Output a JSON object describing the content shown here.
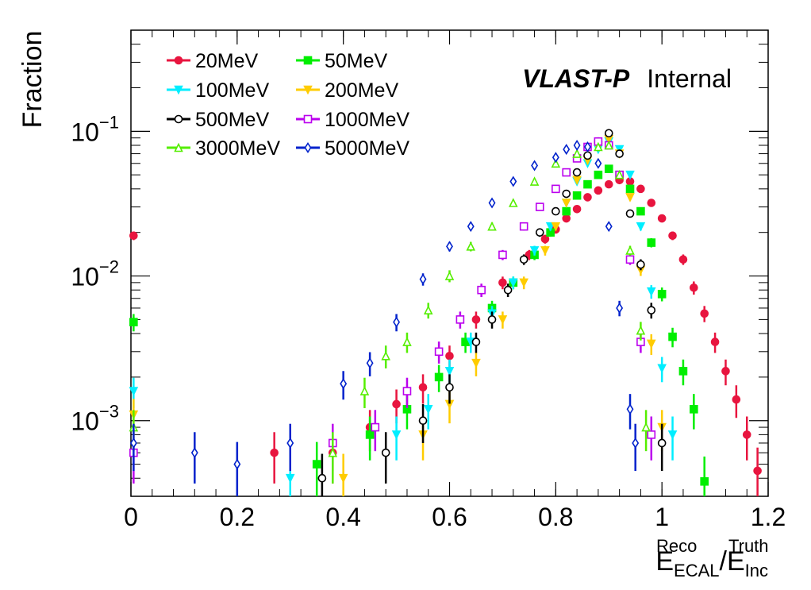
{
  "chart_data": {
    "type": "scatter",
    "ylabel": "Fraction",
    "xlabel_main": "E",
    "xlabel_num_sup": "Reco",
    "xlabel_num_sub": "ECAL",
    "xlabel_sep": "/E",
    "xlabel_den_sup": "Truth",
    "xlabel_den_sub": "Inc",
    "annotation_bold": "VLAST-P",
    "annotation": "Internal",
    "y_scale": "log",
    "xlim": [
      0,
      1.2
    ],
    "ylim": [
      0.0003,
      0.5
    ],
    "x_ticks": [
      "0",
      "0.2",
      "0.4",
      "0.6",
      "0.8",
      "1",
      "1.2"
    ],
    "x_tick_values": [
      0,
      0.2,
      0.4,
      0.6,
      0.8,
      1.0,
      1.2
    ],
    "y_ticks": [
      {
        "base": "10",
        "exp": "−1",
        "value": 0.1
      },
      {
        "base": "10",
        "exp": "−2",
        "value": 0.01
      },
      {
        "base": "10",
        "exp": "−3",
        "value": 0.001
      }
    ],
    "legend_placement": "top-left",
    "series": [
      {
        "name": "20MeV",
        "color": "#e8153f",
        "marker": "filled-circle",
        "x": [
          0.005,
          0.27,
          0.38,
          0.45,
          0.5,
          0.55,
          0.6,
          0.65,
          0.7,
          0.75,
          0.78,
          0.8,
          0.82,
          0.84,
          0.86,
          0.88,
          0.9,
          0.92,
          0.94,
          0.96,
          0.98,
          1.0,
          1.02,
          1.04,
          1.06,
          1.08,
          1.1,
          1.12,
          1.14,
          1.16,
          1.18
        ],
        "y": [
          0.019,
          0.0006,
          0.0006,
          0.0009,
          0.0013,
          0.0017,
          0.0028,
          0.005,
          0.009,
          0.014,
          0.018,
          0.021,
          0.025,
          0.029,
          0.035,
          0.039,
          0.043,
          0.046,
          0.045,
          0.04,
          0.032,
          0.025,
          0.019,
          0.013,
          0.0083,
          0.0055,
          0.0035,
          0.0022,
          0.0014,
          0.0008,
          0.00045
        ]
      },
      {
        "name": "50MeV",
        "color": "#00ee00",
        "marker": "filled-square",
        "x": [
          0.005,
          0.35,
          0.45,
          0.52,
          0.58,
          0.63,
          0.68,
          0.72,
          0.76,
          0.79,
          0.82,
          0.84,
          0.86,
          0.88,
          0.9,
          0.92,
          0.94,
          0.96,
          0.98,
          1.0,
          1.02,
          1.04,
          1.06,
          1.08
        ],
        "y": [
          0.0048,
          0.0005,
          0.0008,
          0.0012,
          0.002,
          0.0035,
          0.006,
          0.009,
          0.014,
          0.02,
          0.028,
          0.036,
          0.043,
          0.05,
          0.055,
          0.05,
          0.04,
          0.028,
          0.017,
          0.0075,
          0.0038,
          0.0022,
          0.0012,
          0.00038
        ]
      },
      {
        "name": "100MeV",
        "color": "#00eeff",
        "marker": "filled-triangle-down",
        "x": [
          0.005,
          0.3,
          0.5,
          0.56,
          0.6,
          0.64,
          0.68,
          0.72,
          0.76,
          0.79,
          0.82,
          0.84,
          0.86,
          0.88,
          0.9,
          0.92,
          0.94,
          0.96,
          0.98,
          1.0,
          1.02
        ],
        "y": [
          0.0016,
          0.0004,
          0.0008,
          0.0012,
          0.0022,
          0.0035,
          0.0055,
          0.009,
          0.015,
          0.022,
          0.032,
          0.045,
          0.06,
          0.075,
          0.085,
          0.075,
          0.05,
          0.022,
          0.0078,
          0.0023,
          0.0008
        ]
      },
      {
        "name": "200MeV",
        "color": "#ffcc00",
        "marker": "filled-triangle-down",
        "x": [
          0.005,
          0.4,
          0.55,
          0.6,
          0.65,
          0.7,
          0.74,
          0.78,
          0.8,
          0.82,
          0.84,
          0.86,
          0.88,
          0.9,
          0.92,
          0.94,
          0.96,
          0.98,
          1.0
        ],
        "y": [
          0.0011,
          0.0004,
          0.0008,
          0.0013,
          0.0025,
          0.005,
          0.009,
          0.015,
          0.022,
          0.032,
          0.046,
          0.063,
          0.078,
          0.088,
          0.07,
          0.035,
          0.011,
          0.0034,
          0.0009
        ]
      },
      {
        "name": "500MeV",
        "color": "#000000",
        "marker": "open-circle",
        "x": [
          0.36,
          0.48,
          0.55,
          0.6,
          0.65,
          0.68,
          0.71,
          0.74,
          0.77,
          0.8,
          0.82,
          0.84,
          0.86,
          0.88,
          0.9,
          0.92,
          0.94,
          0.96,
          0.98,
          1.0
        ],
        "y": [
          0.0004,
          0.0006,
          0.001,
          0.0017,
          0.0035,
          0.005,
          0.008,
          0.013,
          0.02,
          0.028,
          0.037,
          0.052,
          0.068,
          0.085,
          0.097,
          0.07,
          0.027,
          0.012,
          0.0058,
          0.0007
        ]
      },
      {
        "name": "1000MeV",
        "color": "#bb00ee",
        "marker": "open-square",
        "x": [
          0.005,
          0.38,
          0.46,
          0.52,
          0.58,
          0.62,
          0.66,
          0.7,
          0.74,
          0.77,
          0.8,
          0.82,
          0.84,
          0.86,
          0.88,
          0.9,
          0.92,
          0.94,
          0.96,
          0.98
        ],
        "y": [
          0.0006,
          0.0007,
          0.0009,
          0.0016,
          0.003,
          0.005,
          0.008,
          0.014,
          0.022,
          0.03,
          0.04,
          0.052,
          0.065,
          0.078,
          0.085,
          0.08,
          0.05,
          0.013,
          0.0035,
          0.0008
        ]
      },
      {
        "name": "3000MeV",
        "color": "#55ee00",
        "marker": "open-triangle",
        "x": [
          0.005,
          0.38,
          0.44,
          0.48,
          0.52,
          0.56,
          0.6,
          0.64,
          0.68,
          0.72,
          0.76,
          0.8,
          0.84,
          0.88,
          0.9,
          0.92,
          0.94,
          0.96,
          0.97
        ],
        "y": [
          0.0009,
          0.0006,
          0.0016,
          0.0028,
          0.0035,
          0.0058,
          0.01,
          0.016,
          0.022,
          0.032,
          0.045,
          0.06,
          0.07,
          0.078,
          0.08,
          0.05,
          0.015,
          0.0042,
          0.0009
        ]
      },
      {
        "name": "5000MeV",
        "color": "#0022cc",
        "marker": "open-diamond",
        "x": [
          0.005,
          0.12,
          0.2,
          0.3,
          0.4,
          0.45,
          0.5,
          0.55,
          0.6,
          0.64,
          0.68,
          0.72,
          0.76,
          0.8,
          0.82,
          0.84,
          0.86,
          0.88,
          0.9,
          0.92,
          0.94,
          0.95
        ],
        "y": [
          0.0007,
          0.0006,
          0.0005,
          0.0007,
          0.0018,
          0.0025,
          0.0048,
          0.0095,
          0.016,
          0.022,
          0.032,
          0.045,
          0.058,
          0.066,
          0.075,
          0.08,
          0.078,
          0.06,
          0.022,
          0.006,
          0.0012,
          0.0007
        ]
      }
    ]
  }
}
